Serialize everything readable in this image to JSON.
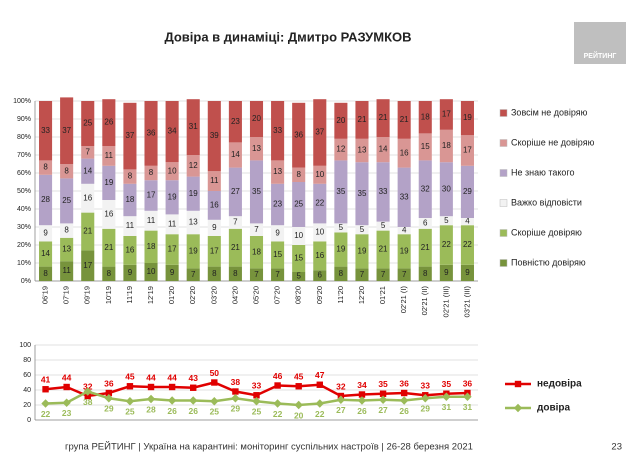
{
  "chart_data": [
    {
      "type": "bar",
      "stacked": true,
      "title": "Довіра в динаміці: Дмитро РАЗУМКОВ",
      "categories": [
        "06'19",
        "07'19",
        "09'19",
        "10'19",
        "11'19",
        "12'19",
        "01'20",
        "02'20",
        "03'20",
        "04'20",
        "05'20",
        "07'20",
        "08'20",
        "09'20",
        "11'20",
        "12'20",
        "01'21",
        "02'21 (I)",
        "02'21 (II)",
        "02'21 (III)",
        "03'21 (III)"
      ],
      "series": [
        {
          "name": "Повністю довіряю",
          "color": "#77933c",
          "values": [
            8,
            11,
            17,
            8,
            9,
            10,
            9,
            7,
            8,
            8,
            7,
            7,
            5,
            6,
            8,
            7,
            7,
            7,
            8,
            9,
            9
          ]
        },
        {
          "name": "Скоріше довіряю",
          "color": "#9bbb59",
          "values": [
            14,
            13,
            21,
            21,
            16,
            18,
            17,
            19,
            17,
            21,
            18,
            15,
            15,
            16,
            19,
            19,
            21,
            19,
            21,
            22,
            22
          ]
        },
        {
          "name": "Важко відповісти",
          "color": "#f2f2f2",
          "values": [
            9,
            8,
            16,
            16,
            11,
            11,
            11,
            13,
            9,
            7,
            7,
            9,
            10,
            10,
            5,
            5,
            5,
            4,
            6,
            5,
            4
          ]
        },
        {
          "name": "Не знаю такого",
          "color": "#b3a2c7",
          "values": [
            28,
            25,
            14,
            19,
            18,
            17,
            19,
            19,
            16,
            27,
            35,
            23,
            25,
            22,
            35,
            35,
            33,
            33,
            32,
            30,
            29
          ]
        },
        {
          "name": "Скоріше не довіряю",
          "color": "#d99694",
          "values": [
            8,
            8,
            7,
            11,
            8,
            8,
            10,
            12,
            11,
            14,
            13,
            13,
            8,
            10,
            12,
            13,
            14,
            16,
            15,
            18,
            17
          ]
        },
        {
          "name": "Зовсім не довіряю",
          "color": "#c0504d",
          "values": [
            33,
            37,
            25,
            26,
            37,
            36,
            34,
            31,
            39,
            23,
            20,
            33,
            36,
            37,
            20,
            21,
            21,
            21,
            18,
            17,
            19
          ]
        }
      ],
      "ylim": [
        0,
        100
      ],
      "yticks": [
        {
          "value": 0,
          "label": "0%"
        },
        {
          "value": 10,
          "label": "10%"
        },
        {
          "value": 20,
          "label": "20%"
        },
        {
          "value": 30,
          "label": "30%"
        },
        {
          "value": 40,
          "label": "40%"
        },
        {
          "value": 50,
          "label": "50%"
        },
        {
          "value": 60,
          "label": "60%"
        },
        {
          "value": 70,
          "label": "70%"
        },
        {
          "value": 80,
          "label": "80%"
        },
        {
          "value": 90,
          "label": "90%"
        },
        {
          "value": 100,
          "label": "100%"
        }
      ],
      "grid": true,
      "legend": "right"
    },
    {
      "type": "line",
      "series": [
        {
          "name": "недовіра",
          "color": "#e00000",
          "marker": "square",
          "values": [
            41,
            44,
            32,
            36,
            45,
            44,
            44,
            43,
            50,
            38,
            33,
            46,
            45,
            47,
            32,
            34,
            35,
            36,
            33,
            35,
            36
          ]
        },
        {
          "name": "довіра",
          "color": "#9bbb59",
          "marker": "diamond",
          "values": [
            22,
            23,
            38,
            29,
            25,
            28,
            26,
            26,
            25,
            29,
            25,
            22,
            20,
            22,
            27,
            26,
            27,
            26,
            29,
            31,
            31
          ]
        }
      ],
      "ylim": [
        0,
        100
      ],
      "yticks": [
        0,
        20,
        40,
        60,
        80,
        100
      ],
      "grid": true,
      "legend": "right"
    }
  ],
  "logo": "РЕЙТИНГ",
  "footer": "група РЕЙТИНГ | Україна на карантині: моніторинг суспільних настроїв | 26-28 березня 2021",
  "page_number": "23"
}
